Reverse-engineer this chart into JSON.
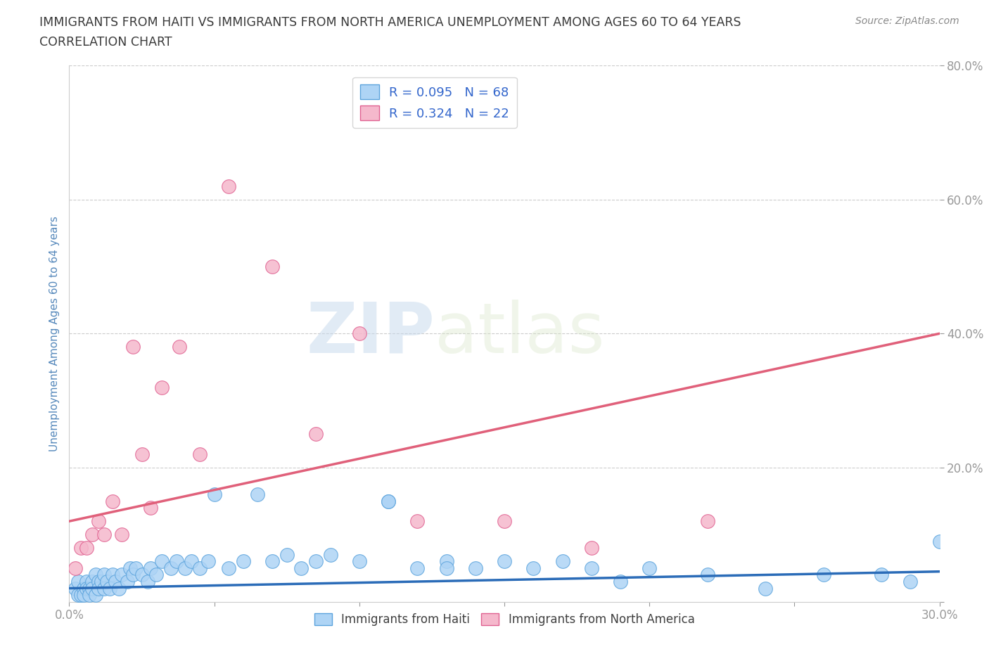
{
  "title_line1": "IMMIGRANTS FROM HAITI VS IMMIGRANTS FROM NORTH AMERICA UNEMPLOYMENT AMONG AGES 60 TO 64 YEARS",
  "title_line2": "CORRELATION CHART",
  "source_text": "Source: ZipAtlas.com",
  "ylabel": "Unemployment Among Ages 60 to 64 years",
  "xlim": [
    0.0,
    0.3
  ],
  "ylim": [
    0.0,
    0.8
  ],
  "haiti_color": "#aed4f5",
  "haiti_edge_color": "#5ba3dc",
  "north_america_color": "#f5b8cc",
  "north_america_edge_color": "#e06090",
  "haiti_line_color": "#2b6cb8",
  "north_america_line_color": "#e0607a",
  "bg_color": "#ffffff",
  "grid_color": "#cccccc",
  "title_color": "#3a3a3a",
  "tick_label_color": "#5588bb",
  "ylabel_color": "#5588bb",
  "watermark_color": "#d0dde8",
  "legend_r_color": "#3366cc",
  "legend_n_color": "#cc3366",
  "haiti_R": 0.095,
  "haiti_N": 68,
  "north_america_R": 0.324,
  "north_america_N": 22,
  "haiti_scatter_x": [
    0.002,
    0.003,
    0.003,
    0.004,
    0.005,
    0.005,
    0.006,
    0.006,
    0.007,
    0.007,
    0.008,
    0.008,
    0.009,
    0.009,
    0.01,
    0.01,
    0.011,
    0.012,
    0.012,
    0.013,
    0.014,
    0.015,
    0.016,
    0.017,
    0.018,
    0.02,
    0.021,
    0.022,
    0.023,
    0.025,
    0.027,
    0.028,
    0.03,
    0.032,
    0.035,
    0.037,
    0.04,
    0.042,
    0.045,
    0.048,
    0.05,
    0.055,
    0.06,
    0.065,
    0.07,
    0.075,
    0.08,
    0.085,
    0.09,
    0.1,
    0.11,
    0.12,
    0.13,
    0.14,
    0.15,
    0.16,
    0.17,
    0.18,
    0.19,
    0.2,
    0.22,
    0.24,
    0.26,
    0.28,
    0.29,
    0.3,
    0.11,
    0.13
  ],
  "haiti_scatter_y": [
    0.02,
    0.01,
    0.03,
    0.01,
    0.02,
    0.01,
    0.03,
    0.02,
    0.02,
    0.01,
    0.03,
    0.02,
    0.04,
    0.01,
    0.03,
    0.02,
    0.03,
    0.02,
    0.04,
    0.03,
    0.02,
    0.04,
    0.03,
    0.02,
    0.04,
    0.03,
    0.05,
    0.04,
    0.05,
    0.04,
    0.03,
    0.05,
    0.04,
    0.06,
    0.05,
    0.06,
    0.05,
    0.06,
    0.05,
    0.06,
    0.16,
    0.05,
    0.06,
    0.16,
    0.06,
    0.07,
    0.05,
    0.06,
    0.07,
    0.06,
    0.15,
    0.05,
    0.06,
    0.05,
    0.06,
    0.05,
    0.06,
    0.05,
    0.03,
    0.05,
    0.04,
    0.02,
    0.04,
    0.04,
    0.03,
    0.09,
    0.15,
    0.05
  ],
  "north_america_scatter_x": [
    0.002,
    0.004,
    0.006,
    0.008,
    0.01,
    0.012,
    0.015,
    0.018,
    0.022,
    0.025,
    0.028,
    0.032,
    0.038,
    0.045,
    0.055,
    0.07,
    0.085,
    0.1,
    0.12,
    0.15,
    0.18,
    0.22
  ],
  "north_america_scatter_y": [
    0.05,
    0.08,
    0.08,
    0.1,
    0.12,
    0.1,
    0.15,
    0.1,
    0.38,
    0.22,
    0.14,
    0.32,
    0.38,
    0.22,
    0.62,
    0.5,
    0.25,
    0.4,
    0.12,
    0.12,
    0.08,
    0.12
  ],
  "haiti_trend_x": [
    0.0,
    0.3
  ],
  "haiti_trend_y": [
    0.02,
    0.045
  ],
  "north_america_trend_x": [
    0.0,
    0.3
  ],
  "north_america_trend_y": [
    0.12,
    0.4
  ],
  "legend_label_haiti": "R = 0.095   N = 68",
  "legend_label_na": "R = 0.324   N = 22",
  "bottom_legend_haiti": "Immigrants from Haiti",
  "bottom_legend_na": "Immigrants from North America"
}
